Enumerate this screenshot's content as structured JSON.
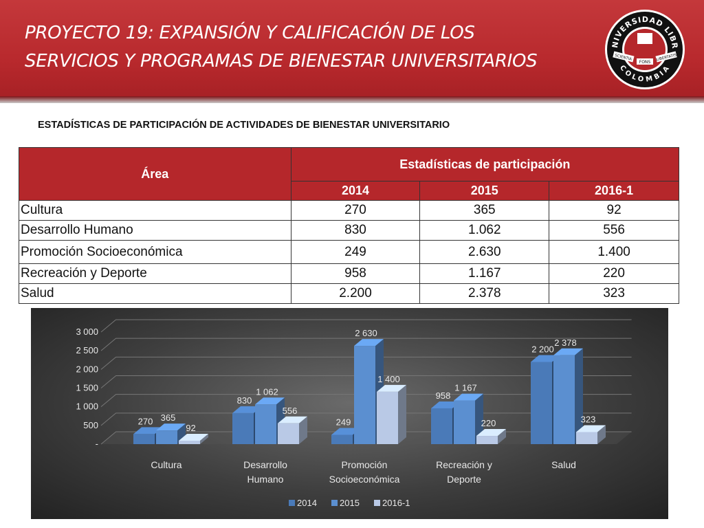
{
  "header": {
    "title_line1": "PROYECTO 19: EXPANSIÓN Y CALIFICACIÓN DE LOS",
    "title_line2": "SERVICIOS Y PROGRAMAS DE BIENESTAR UNIVERSITARIOS",
    "logo": {
      "top_text": "UNIVERSIDAD LIBRE",
      "bottom_text": "COLOMBIA",
      "left_ribbon": "SCIENTIA",
      "center_ribbon": "FONS",
      "right_ribbon": "LIBERTATIS"
    }
  },
  "subtitle": "ESTADÍSTICAS DE PARTICIPACIÓN DE ACTIVIDADES DE BIENESTAR UNIVERSITARIO",
  "table": {
    "area_header": "Área",
    "group_header": "Estadísticas de participación",
    "year_headers": [
      "2014",
      "2015",
      "2016-1"
    ],
    "rows": [
      {
        "area": "Cultura",
        "v2014": "270",
        "v2015": "365",
        "v2016": "92"
      },
      {
        "area": "Desarrollo Humano",
        "v2014": "830",
        "v2015": "1.062",
        "v2016": "556"
      },
      {
        "area": "Promoción Socioeconómica",
        "v2014": "249",
        "v2015": "2.630",
        "v2016": "1.400"
      },
      {
        "area": "Recreación y Deporte",
        "v2014": "958",
        "v2015": "1.167",
        "v2016": "220"
      },
      {
        "area": "Salud",
        "v2014": "2.200",
        "v2015": "2.378",
        "v2016": "323"
      }
    ]
  },
  "chart_data": {
    "type": "bar",
    "categories": [
      [
        "Cultura"
      ],
      [
        "Desarrollo",
        "Humano"
      ],
      [
        "Promoción",
        "Socioeconómica"
      ],
      [
        "Recreación y",
        "Deporte"
      ],
      [
        "Salud"
      ]
    ],
    "series": [
      {
        "name": "2014",
        "values": [
          270,
          830,
          249,
          958,
          2200
        ],
        "labels": [
          "270",
          "830",
          "249",
          "958",
          "2 200"
        ]
      },
      {
        "name": "2015",
        "values": [
          365,
          1062,
          2630,
          1167,
          2378
        ],
        "labels": [
          "365",
          "1 062",
          "2 630",
          "1 167",
          "2 378"
        ]
      },
      {
        "name": "2016-1",
        "values": [
          92,
          556,
          1400,
          220,
          323
        ],
        "labels": [
          "92",
          "556",
          "1 400",
          "220",
          "323"
        ]
      }
    ],
    "yticks": [
      0,
      500,
      1000,
      1500,
      2000,
      2500,
      3000
    ],
    "ytick_labels": [
      "-",
      "500",
      "1 000",
      "1 500",
      "2 000",
      "2 500",
      "3 000"
    ],
    "ylim": [
      0,
      3000
    ],
    "grid": true,
    "legend_position": "bottom",
    "three_d": true,
    "colors": {
      "2014": "#4a7ab8",
      "2015": "#5b8fd0",
      "2016-1": "#b9c9e6"
    },
    "background": "#3e3e3e"
  },
  "colors": {
    "brand_red": "#b5272b",
    "text_white": "#ffffff"
  }
}
